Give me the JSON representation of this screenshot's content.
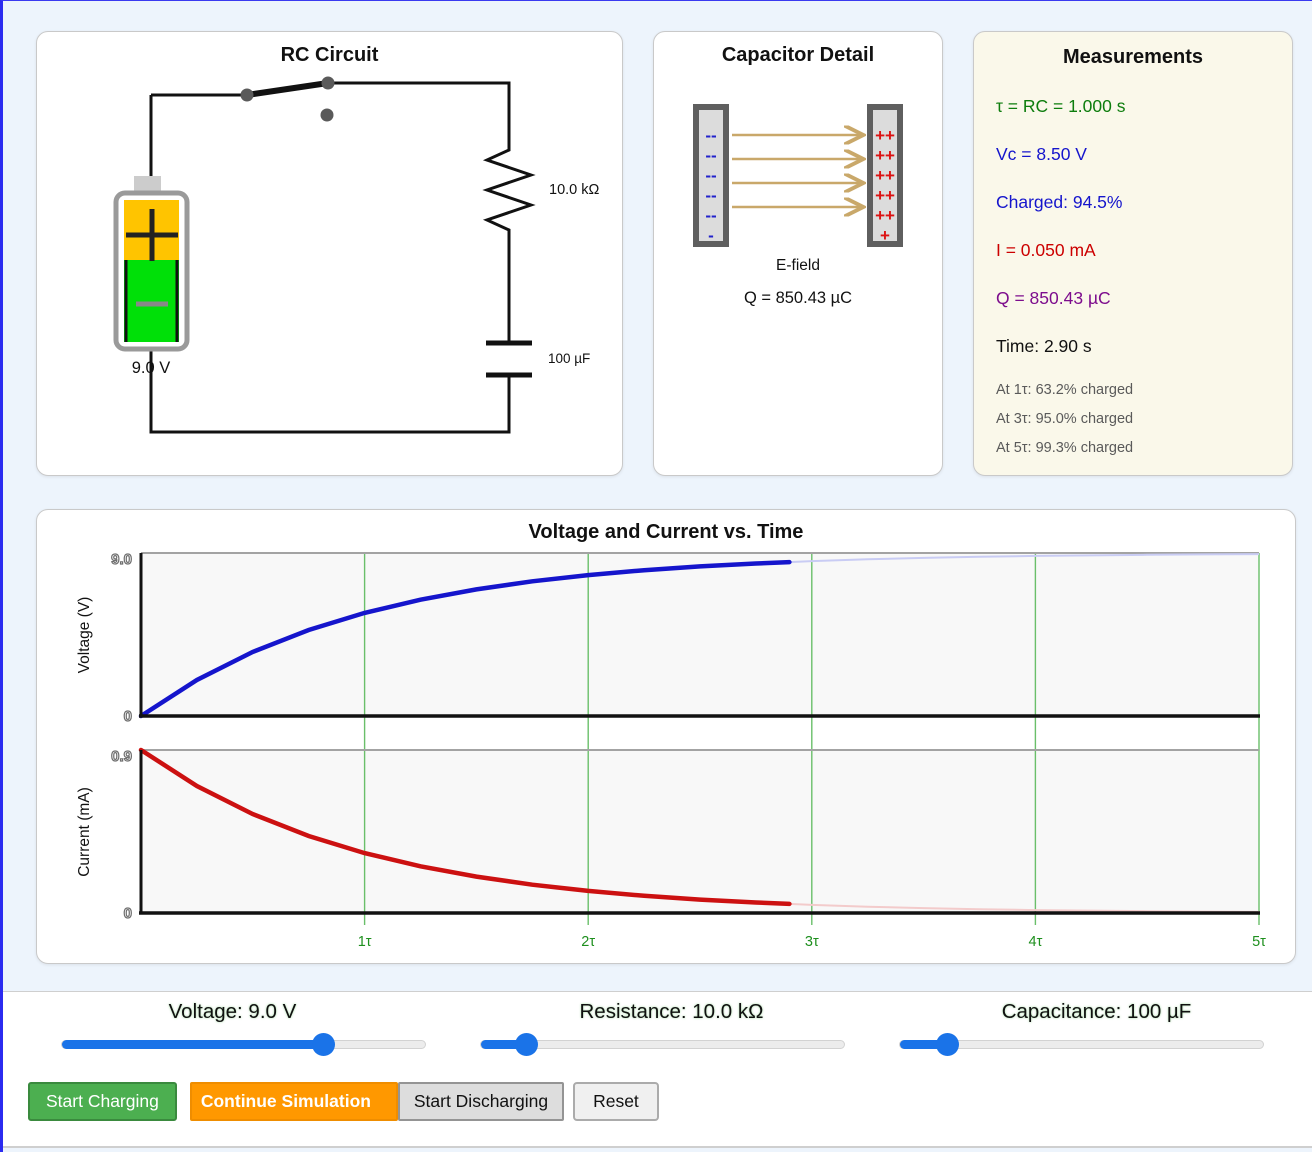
{
  "circuit_panel": {
    "title": "RC Circuit",
    "battery_label": "9.0 V",
    "resistor_label": "10.0 kΩ",
    "capacitor_label": "100 µF",
    "battery_colors": {
      "top": "#ffc400",
      "bottom": "#00e008"
    }
  },
  "capacitor_panel": {
    "title": "Capacitor Detail",
    "efield_label": "E-field",
    "charge_label": "Q = 850.43 µC",
    "minus_rows": [
      "--",
      "--",
      "--",
      "--",
      "--",
      "-"
    ],
    "plus_rows": [
      "++",
      "++",
      "++",
      "++",
      "++",
      "+"
    ],
    "minus_color": "#2222cc",
    "plus_color": "#dd1111",
    "arrow_color": "#c9a86a"
  },
  "measurements_panel": {
    "title": "Measurements",
    "tau": {
      "text": "τ = RC = 1.000 s",
      "color": "#0d7d0d"
    },
    "vc": {
      "text": "Vc = 8.50 V",
      "color": "#1515cc"
    },
    "charged": {
      "text": "Charged: 94.5%",
      "color": "#1515cc"
    },
    "current": {
      "text": "I = 0.050 mA",
      "color": "#cc0000"
    },
    "charge": {
      "text": "Q = 850.43 µC",
      "color": "#7d0d8d"
    },
    "time": {
      "text": "Time: 2.90 s",
      "color": "#111111"
    },
    "notes": [
      "At 1τ: 63.2% charged",
      "At 3τ: 95.0% charged",
      "At 5τ: 99.3% charged"
    ]
  },
  "chart_data": {
    "type": "line",
    "title": "Voltage and Current vs. Time",
    "x_label_unit": "τ",
    "x": [
      0,
      0.25,
      0.5,
      0.75,
      1,
      1.25,
      1.5,
      1.75,
      2,
      2.25,
      2.5,
      2.75,
      2.9,
      3,
      3.25,
      3.5,
      3.75,
      4,
      4.25,
      4.5,
      4.75,
      5
    ],
    "t_now": 2.9,
    "t_max": 5,
    "x_tick_labels": [
      "1τ",
      "2τ",
      "3τ",
      "4τ",
      "5τ"
    ],
    "gridline_color": "#6abf6a",
    "x_tick_color": "#1e8f1e",
    "series": [
      {
        "name": "voltage",
        "label": "Voltage (V)",
        "color": "#1515cc",
        "faint_color": "#c9ccf4",
        "y_max": 9,
        "y_tick_top": "9.0",
        "y_tick_bottom": "0",
        "values": [
          0,
          1.99,
          3.54,
          4.75,
          5.69,
          6.42,
          6.99,
          7.44,
          7.78,
          8.05,
          8.26,
          8.42,
          8.5,
          8.55,
          8.65,
          8.73,
          8.79,
          8.84,
          8.87,
          8.9,
          8.92,
          8.94
        ]
      },
      {
        "name": "current",
        "label": "Current (mA)",
        "color": "#cc1111",
        "faint_color": "#f3cbcb",
        "y_max": 0.9,
        "y_tick_top": "0.9",
        "y_tick_bottom": "0",
        "values": [
          0.9,
          0.701,
          0.546,
          0.425,
          0.331,
          0.258,
          0.201,
          0.156,
          0.122,
          0.095,
          0.074,
          0.058,
          0.05,
          0.045,
          0.035,
          0.027,
          0.021,
          0.016,
          0.013,
          0.01,
          0.008,
          0.006
        ]
      }
    ]
  },
  "controls": {
    "sliders": [
      {
        "label": "Voltage: 9.0 V",
        "percent": 72
      },
      {
        "label": "Resistance: 10.0 kΩ",
        "percent": 12.5
      },
      {
        "label": "Capacitance: 100 µF",
        "percent": 13
      }
    ],
    "buttons": {
      "start_charging": "Start Charging",
      "continue_simulation": "Continue Simulation",
      "start_discharging": "Start Discharging",
      "reset": "Reset"
    },
    "accent_color": "#1a73e8"
  }
}
